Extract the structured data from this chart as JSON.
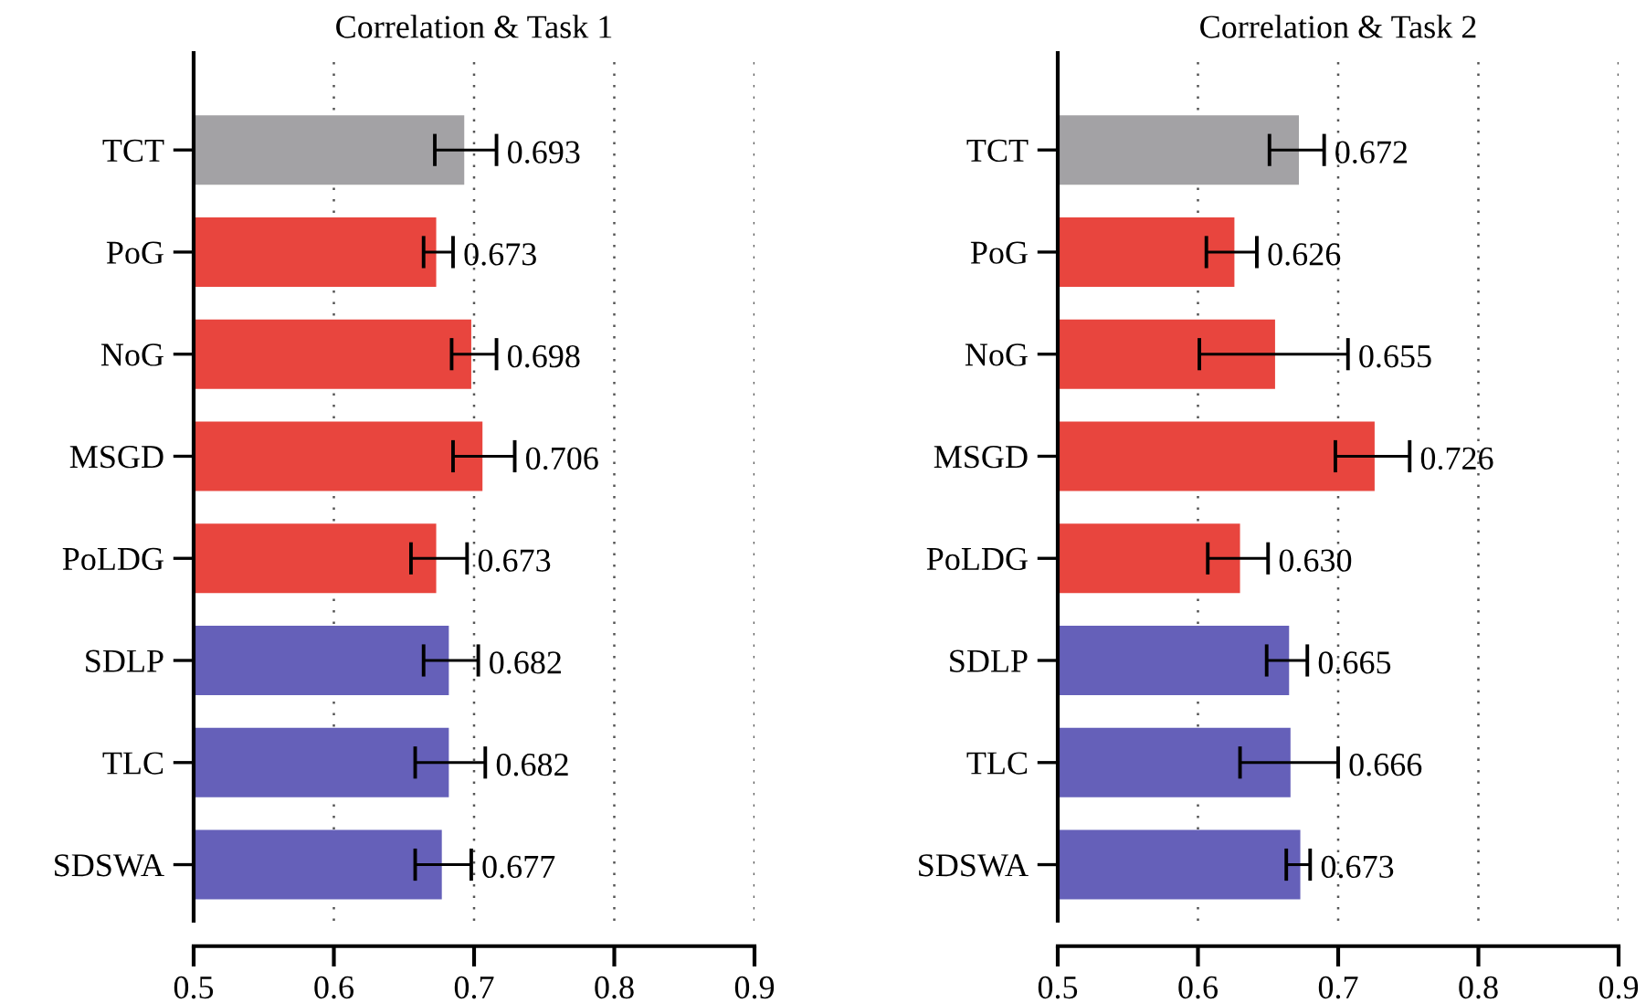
{
  "chart_data": [
    {
      "type": "bar",
      "orientation": "horizontal",
      "title": "Correlation & Task 1",
      "categories": [
        "TCT",
        "PoG",
        "NoG",
        "MSGD",
        "PoLDG",
        "SDLP",
        "TLC",
        "SDSWA"
      ],
      "values": [
        0.693,
        0.673,
        0.698,
        0.706,
        0.673,
        0.682,
        0.682,
        0.677
      ],
      "errors": [
        [
          0.672,
          0.716
        ],
        [
          0.664,
          0.685
        ],
        [
          0.684,
          0.716
        ],
        [
          0.685,
          0.729
        ],
        [
          0.655,
          0.695
        ],
        [
          0.664,
          0.703
        ],
        [
          0.658,
          0.708
        ],
        [
          0.658,
          0.698
        ]
      ],
      "colors": [
        "#a3a2a5",
        "#e8453e",
        "#e8453e",
        "#e8453e",
        "#e8453e",
        "#6560b9",
        "#6560b9",
        "#6560b9"
      ],
      "value_labels": [
        "0.693",
        "0.673",
        "0.698",
        "0.706",
        "0.673",
        "0.682",
        "0.682",
        "0.677"
      ],
      "xlim": [
        0.5,
        0.9
      ],
      "xticks": [
        0.5,
        0.6,
        0.7,
        0.8,
        0.9
      ],
      "grid": "x"
    },
    {
      "type": "bar",
      "orientation": "horizontal",
      "title": "Correlation & Task 2",
      "categories": [
        "TCT",
        "PoG",
        "NoG",
        "MSGD",
        "PoLDG",
        "SDLP",
        "TLC",
        "SDSWA"
      ],
      "values": [
        0.672,
        0.626,
        0.655,
        0.726,
        0.63,
        0.665,
        0.666,
        0.673
      ],
      "errors": [
        [
          0.651,
          0.69
        ],
        [
          0.606,
          0.642
        ],
        [
          0.601,
          0.707
        ],
        [
          0.698,
          0.751
        ],
        [
          0.607,
          0.65
        ],
        [
          0.649,
          0.678
        ],
        [
          0.63,
          0.7
        ],
        [
          0.663,
          0.68
        ]
      ],
      "colors": [
        "#a3a2a5",
        "#e8453e",
        "#e8453e",
        "#e8453e",
        "#e8453e",
        "#6560b9",
        "#6560b9",
        "#6560b9"
      ],
      "value_labels": [
        "0.672",
        "0.626",
        "0.655",
        "0.726",
        "0.630",
        "0.665",
        "0.666",
        "0.673"
      ],
      "xlim": [
        0.5,
        0.9
      ],
      "xticks": [
        0.5,
        0.6,
        0.7,
        0.8,
        0.9
      ],
      "grid": "x"
    }
  ]
}
